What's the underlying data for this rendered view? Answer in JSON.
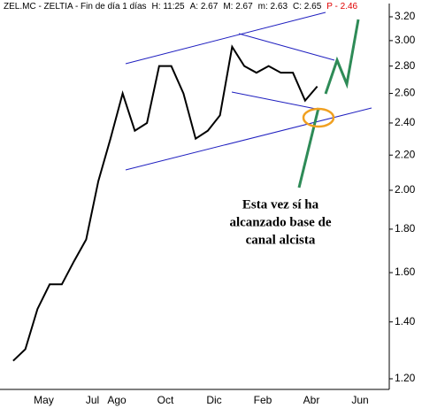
{
  "header": [
    "ZEL.MC - ZELTIA - Fin de día 1 días",
    "H: 11:25",
    "A: 2.67",
    "M: 2.67",
    "m: 2.63",
    "C: 2.65",
    "P - 2.46"
  ],
  "chart_data": {
    "type": "line",
    "log_scale": true,
    "grid": false,
    "categories": [
      null,
      null,
      "May",
      null,
      null,
      null,
      "Jul",
      null,
      "Ago",
      null,
      null,
      null,
      "Oct",
      null,
      null,
      null,
      "Dic",
      null,
      null,
      null,
      "Feb",
      null,
      null,
      null,
      "Abr",
      null,
      null,
      null,
      "Jun",
      null
    ],
    "series": [
      {
        "name": "ZEL.MC",
        "color": "#000000",
        "values": [
          1.26,
          1.3,
          1.45,
          1.55,
          1.55,
          1.65,
          1.75,
          2.05,
          2.3,
          2.6,
          2.35,
          2.4,
          2.8,
          2.8,
          2.6,
          2.3,
          2.35,
          2.45,
          2.95,
          2.8,
          2.75,
          2.8,
          2.75,
          2.75,
          2.55,
          2.65,
          null,
          null,
          null,
          null
        ]
      }
    ],
    "ylim": [
      1.166,
      3.317
    ],
    "yticks": [
      {
        "value": 1.2,
        "label": "1.20"
      },
      {
        "value": 1.4,
        "label": "1.40"
      },
      {
        "value": 1.6,
        "label": "1.60"
      },
      {
        "value": 1.8,
        "label": "1.80"
      },
      {
        "value": 2.0,
        "label": "2.00"
      },
      {
        "value": 2.2,
        "label": "2.20"
      },
      {
        "value": 2.4,
        "label": "2.40"
      },
      {
        "value": 2.6,
        "label": "2.60"
      },
      {
        "value": 2.8,
        "label": "2.80"
      },
      {
        "value": 3.0,
        "label": "3.00"
      },
      {
        "value": 3.2,
        "label": "3.20"
      }
    ],
    "annotation": [
      "Esta vez sí ha",
      "alcanzado base de",
      "canal alcista"
    ]
  }
}
